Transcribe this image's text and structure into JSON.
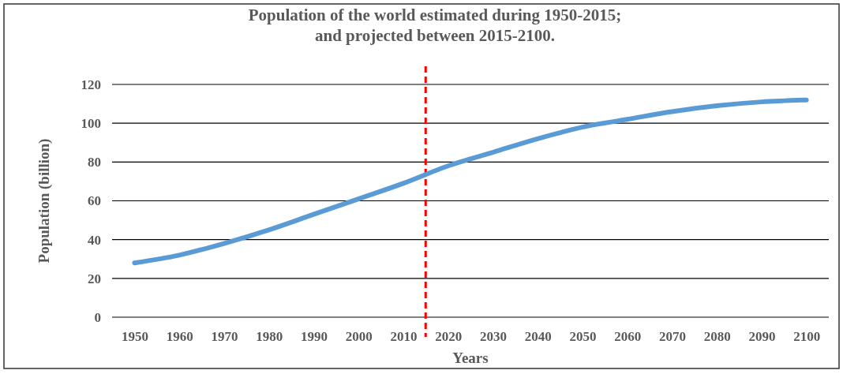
{
  "chart_data": {
    "type": "line",
    "title": "Population of the world estimated during 1950-2015;\nand projected between 2015-2100.",
    "xlabel": "Years",
    "ylabel": "Population (billion)",
    "x": [
      1950,
      1960,
      1970,
      1980,
      1990,
      2000,
      2010,
      2020,
      2030,
      2040,
      2050,
      2060,
      2070,
      2080,
      2090,
      2100
    ],
    "series": [
      {
        "color": "#5b9bd5",
        "values": [
          28,
          32,
          38,
          45,
          53,
          61,
          69,
          78,
          85,
          92,
          98,
          102,
          106,
          109,
          111,
          112
        ]
      }
    ],
    "xlim": [
      1945,
      2105
    ],
    "xticks": [
      1950,
      1960,
      1970,
      1980,
      1990,
      2000,
      2010,
      2020,
      2030,
      2040,
      2050,
      2060,
      2070,
      2080,
      2090,
      2100
    ],
    "ylim": [
      0,
      120
    ],
    "yticks": [
      0,
      20,
      40,
      60,
      80,
      100,
      120
    ],
    "grid": "y",
    "legend": false,
    "line_style": "solid",
    "marker": "none",
    "ref_lines": [
      {
        "axis": "x",
        "value": 2015,
        "color": "#ff0000",
        "line_style": "dashed"
      }
    ]
  }
}
